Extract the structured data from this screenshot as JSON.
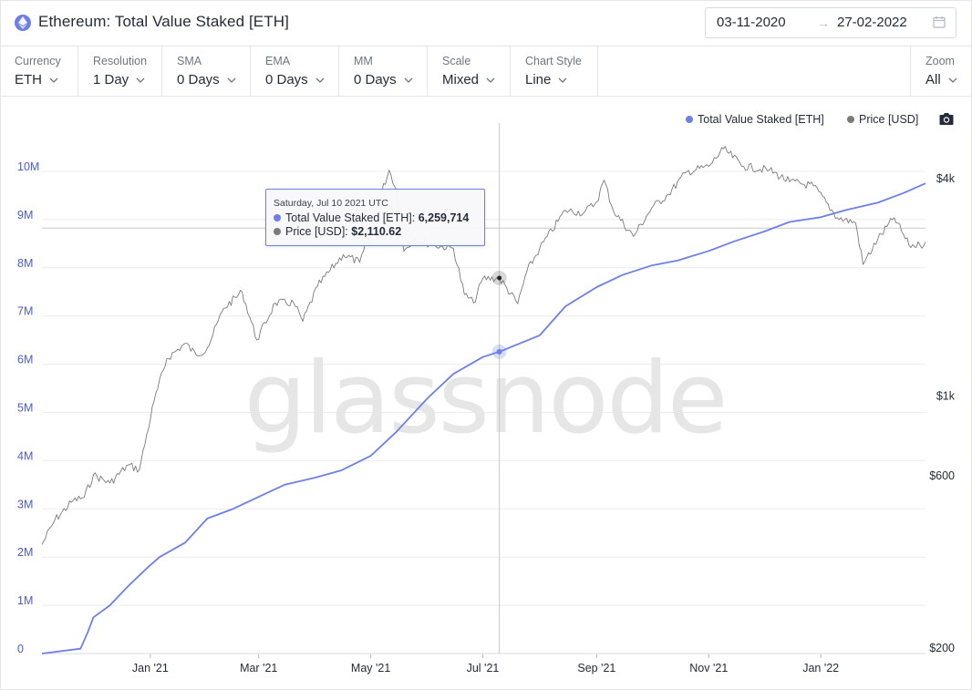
{
  "header": {
    "title": "Ethereum: Total Value Staked [ETH]",
    "date_start": "03-11-2020",
    "date_arrow": "→",
    "date_end": "27-02-2022"
  },
  "toolbar": {
    "controls": [
      {
        "label": "Currency",
        "value": "ETH"
      },
      {
        "label": "Resolution",
        "value": "1 Day"
      },
      {
        "label": "SMA",
        "value": "0 Days"
      },
      {
        "label": "EMA",
        "value": "0 Days"
      },
      {
        "label": "MM",
        "value": "0 Days"
      },
      {
        "label": "Scale",
        "value": "Mixed"
      },
      {
        "label": "Chart Style",
        "value": "Line"
      }
    ],
    "zoom": {
      "label": "Zoom",
      "value": "All"
    }
  },
  "watermark": "glassnode",
  "tooltip": {
    "date": "Saturday, Jul 10 2021 UTC",
    "rows": [
      {
        "label": "Total Value Staked [ETH]:",
        "value": "6,259,714"
      },
      {
        "label": "Price [USD]:",
        "value": "$2,110.62"
      }
    ]
  },
  "colors": {
    "tvs": "#6d7fe8",
    "price": "#7a7a7a",
    "accent": "#5a6de0"
  },
  "chart_data": {
    "type": "line",
    "x_ticks": [
      "Jan '21",
      "Mar '21",
      "May '21",
      "Jul '21",
      "Sep '21",
      "Nov '21",
      "Jan '22"
    ],
    "y_left_ticks": [
      "0",
      "1M",
      "2M",
      "3M",
      "4M",
      "5M",
      "6M",
      "7M",
      "8M",
      "9M",
      "10M"
    ],
    "y_left_range": [
      0,
      10000000
    ],
    "y_right_ticks": [
      "$200",
      "$600",
      "$1k",
      "$4k"
    ],
    "y_right_scale": "log",
    "grid": true,
    "legend_position": "top-right",
    "series": [
      {
        "name": "Total Value Staked [ETH]",
        "axis": "left",
        "color": "#6d7fe8",
        "points": [
          [
            "2020-11-03",
            0
          ],
          [
            "2020-11-24",
            100000
          ],
          [
            "2020-11-28",
            450000
          ],
          [
            "2020-12-01",
            750000
          ],
          [
            "2020-12-10",
            1000000
          ],
          [
            "2020-12-20",
            1400000
          ],
          [
            "2020-12-31",
            1800000
          ],
          [
            "2021-01-06",
            2000000
          ],
          [
            "2021-01-20",
            2300000
          ],
          [
            "2021-02-01",
            2800000
          ],
          [
            "2021-02-15",
            3000000
          ],
          [
            "2021-03-01",
            3250000
          ],
          [
            "2021-03-15",
            3500000
          ],
          [
            "2021-04-01",
            3650000
          ],
          [
            "2021-04-15",
            3800000
          ],
          [
            "2021-05-01",
            4100000
          ],
          [
            "2021-05-15",
            4600000
          ],
          [
            "2021-06-01",
            5300000
          ],
          [
            "2021-06-15",
            5800000
          ],
          [
            "2021-07-01",
            6150000
          ],
          [
            "2021-07-10",
            6259714
          ],
          [
            "2021-08-01",
            6600000
          ],
          [
            "2021-08-15",
            7200000
          ],
          [
            "2021-09-01",
            7600000
          ],
          [
            "2021-09-15",
            7850000
          ],
          [
            "2021-10-01",
            8050000
          ],
          [
            "2021-10-15",
            8150000
          ],
          [
            "2021-11-01",
            8350000
          ],
          [
            "2021-11-15",
            8550000
          ],
          [
            "2021-12-01",
            8750000
          ],
          [
            "2021-12-15",
            8950000
          ],
          [
            "2022-01-01",
            9050000
          ],
          [
            "2022-01-15",
            9200000
          ],
          [
            "2022-02-01",
            9350000
          ],
          [
            "2022-02-15",
            9550000
          ],
          [
            "2022-02-27",
            9750000
          ]
        ]
      },
      {
        "name": "Price [USD]",
        "axis": "right",
        "color": "#7a7a7a",
        "points": [
          [
            "2020-11-03",
            385
          ],
          [
            "2020-11-10",
            450
          ],
          [
            "2020-11-20",
            510
          ],
          [
            "2020-11-26",
            520
          ],
          [
            "2020-12-01",
            600
          ],
          [
            "2020-12-10",
            570
          ],
          [
            "2020-12-20",
            640
          ],
          [
            "2020-12-26",
            620
          ],
          [
            "2021-01-03",
            960
          ],
          [
            "2021-01-10",
            1260
          ],
          [
            "2021-01-20",
            1390
          ],
          [
            "2021-01-26",
            1290
          ],
          [
            "2021-02-01",
            1350
          ],
          [
            "2021-02-10",
            1740
          ],
          [
            "2021-02-20",
            1930
          ],
          [
            "2021-02-28",
            1420
          ],
          [
            "2021-03-10",
            1800
          ],
          [
            "2021-03-20",
            1800
          ],
          [
            "2021-03-25",
            1600
          ],
          [
            "2021-04-02",
            2000
          ],
          [
            "2021-04-16",
            2450
          ],
          [
            "2021-04-25",
            2330
          ],
          [
            "2021-05-01",
            2800
          ],
          [
            "2021-05-05",
            3400
          ],
          [
            "2021-05-11",
            4200
          ],
          [
            "2021-05-15",
            3700
          ],
          [
            "2021-05-19",
            2500
          ],
          [
            "2021-05-25",
            2700
          ],
          [
            "2021-06-05",
            2600
          ],
          [
            "2021-06-15",
            2550
          ],
          [
            "2021-06-21",
            1900
          ],
          [
            "2021-06-26",
            1800
          ],
          [
            "2021-07-01",
            2100
          ],
          [
            "2021-07-10",
            2110
          ],
          [
            "2021-07-20",
            1790
          ],
          [
            "2021-07-25",
            2200
          ],
          [
            "2021-08-01",
            2550
          ],
          [
            "2021-08-15",
            3250
          ],
          [
            "2021-08-25",
            3200
          ],
          [
            "2021-09-01",
            3430
          ],
          [
            "2021-09-05",
            3940
          ],
          [
            "2021-09-10",
            3250
          ],
          [
            "2021-09-21",
            2750
          ],
          [
            "2021-10-01",
            3300
          ],
          [
            "2021-10-10",
            3600
          ],
          [
            "2021-10-20",
            4150
          ],
          [
            "2021-11-01",
            4300
          ],
          [
            "2021-11-09",
            4810
          ],
          [
            "2021-11-20",
            4300
          ],
          [
            "2021-12-04",
            4200
          ],
          [
            "2021-12-15",
            3900
          ],
          [
            "2021-12-28",
            3800
          ],
          [
            "2022-01-10",
            3100
          ],
          [
            "2022-01-20",
            3000
          ],
          [
            "2022-01-24",
            2300
          ],
          [
            "2022-02-01",
            2700
          ],
          [
            "2022-02-10",
            3100
          ],
          [
            "2022-02-18",
            2600
          ],
          [
            "2022-02-24",
            2600
          ],
          [
            "2022-02-27",
            2650
          ]
        ]
      }
    ],
    "crosshair_date": "2021-07-10"
  }
}
